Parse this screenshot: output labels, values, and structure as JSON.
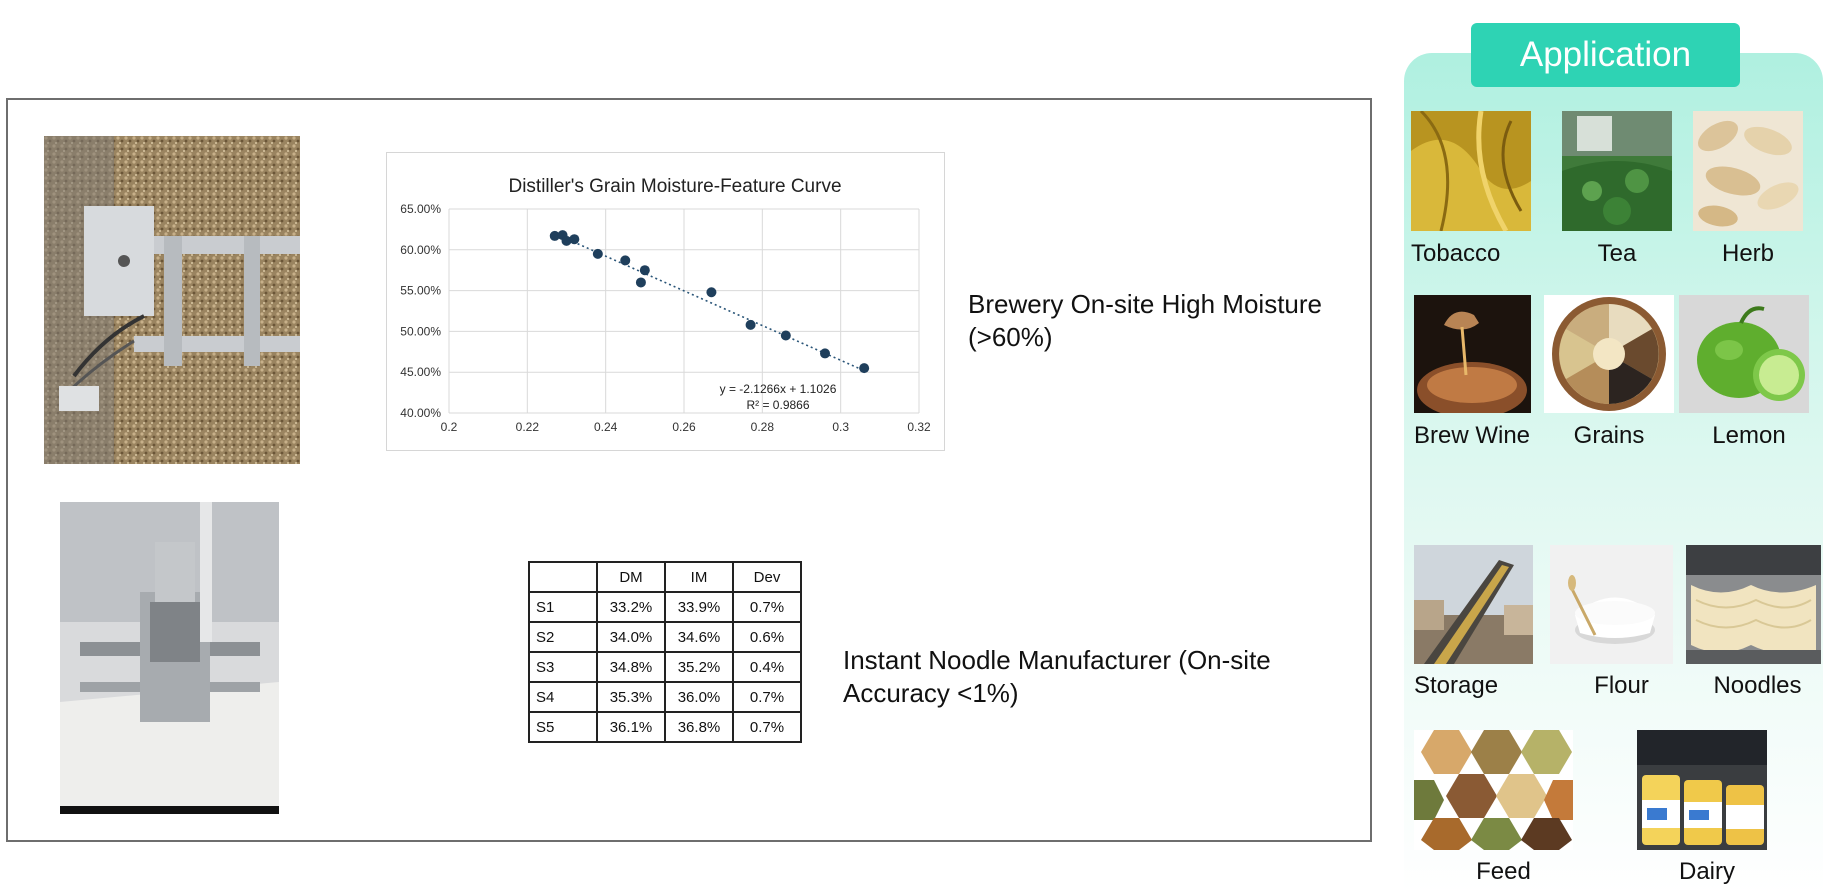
{
  "left_panel": {
    "brewery_caption": "Brewery On-site High Moisture\n (>60%)",
    "noodle_caption": "Instant Noodle Manufacturer (On-site\nAccuracy <1%)"
  },
  "chart_data": {
    "type": "scatter",
    "title": "Distiller's Grain Moisture-Feature Curve",
    "xlim": [
      0.2,
      0.32
    ],
    "ylim": [
      0.4,
      0.65
    ],
    "x_ticks": [
      "0.2",
      "0.22",
      "0.24",
      "0.26",
      "0.28",
      "0.3",
      "0.32"
    ],
    "y_ticks": [
      "40.00%",
      "45.00%",
      "50.00%",
      "55.00%",
      "60.00%",
      "65.00%"
    ],
    "points": [
      {
        "x": 0.227,
        "y": 0.617
      },
      {
        "x": 0.229,
        "y": 0.618
      },
      {
        "x": 0.23,
        "y": 0.611
      },
      {
        "x": 0.232,
        "y": 0.613
      },
      {
        "x": 0.238,
        "y": 0.595
      },
      {
        "x": 0.245,
        "y": 0.587
      },
      {
        "x": 0.249,
        "y": 0.56
      },
      {
        "x": 0.25,
        "y": 0.575
      },
      {
        "x": 0.267,
        "y": 0.548
      },
      {
        "x": 0.277,
        "y": 0.508
      },
      {
        "x": 0.286,
        "y": 0.495
      },
      {
        "x": 0.296,
        "y": 0.473
      },
      {
        "x": 0.306,
        "y": 0.455
      }
    ],
    "trendline": {
      "slope": -2.1266,
      "intercept": 1.1026,
      "x_range": [
        0.227,
        0.306
      ]
    },
    "equation": "y = -2.1266x + 1.1026",
    "r_squared": "R² = 0.9866",
    "grid": true
  },
  "table": {
    "headers": [
      "",
      "DM",
      "IM",
      "Dev"
    ],
    "rows": [
      [
        "S1",
        "33.2%",
        "33.9%",
        "0.7%"
      ],
      [
        "S2",
        "34.0%",
        "34.6%",
        "0.6%"
      ],
      [
        "S3",
        "34.8%",
        "35.2%",
        "0.4%"
      ],
      [
        "S4",
        "35.3%",
        "36.0%",
        "0.7%"
      ],
      [
        "S5",
        "36.1%",
        "36.8%",
        "0.7%"
      ]
    ]
  },
  "application": {
    "title": "Application",
    "items": [
      {
        "label": "Tobacco"
      },
      {
        "label": "Tea"
      },
      {
        "label": "Herb"
      },
      {
        "label": "Brew Wine"
      },
      {
        "label": "Grains"
      },
      {
        "label": "Lemon"
      },
      {
        "label": "Storage"
      },
      {
        "label": "Flour"
      },
      {
        "label": "Noodles"
      },
      {
        "label": "Feed"
      },
      {
        "label": "Dairy"
      }
    ]
  },
  "colors": {
    "accent": "#2ed3b4",
    "chart_points": "#1f3f5c",
    "panel_bg": "#aff0e0"
  }
}
